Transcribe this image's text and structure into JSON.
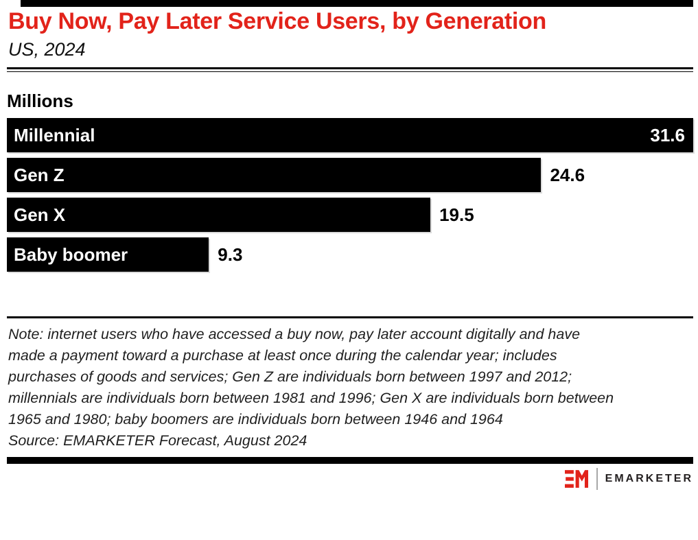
{
  "header": {
    "title": "Buy Now, Pay Later Service Users, by Generation",
    "subtitle": "US, 2024"
  },
  "chart_data": {
    "type": "bar",
    "orientation": "horizontal",
    "title": "Buy Now, Pay Later Service Users, by Generation",
    "subtitle": "US, 2024",
    "units_label": "Millions",
    "categories": [
      "Millennial",
      "Gen Z",
      "Gen X",
      "Baby boomer"
    ],
    "values": [
      31.6,
      24.6,
      19.5,
      9.3
    ],
    "value_labels": [
      "31.6",
      "24.6",
      "19.5",
      "9.3"
    ],
    "xmax": 31.6,
    "bar_color": "#000000",
    "value_label_position": [
      "inside-right",
      "outside",
      "outside",
      "outside"
    ],
    "grid": false,
    "legend": false
  },
  "footer": {
    "note_lines": [
      "Note: internet users who have accessed a buy now, pay later account digitally and have",
      "made a payment toward a purchase at least once during the calendar year; includes",
      "purchases of goods and services; Gen Z are individuals born between 1997 and 2012;",
      "millennials are individuals born between 1981 and 1996; Gen X are individuals born between",
      "1965 and 1980; baby boomers are individuals born between 1946 and 1964"
    ],
    "source": "Source: EMARKETER Forecast, August 2024"
  },
  "logo": {
    "monogram": "EM",
    "wordmark": "EMARKETER"
  },
  "colors": {
    "title_red": "#e2231a",
    "bar_black": "#000000",
    "logo_red": "#e2231a",
    "wordmark_dark": "#231f20"
  }
}
